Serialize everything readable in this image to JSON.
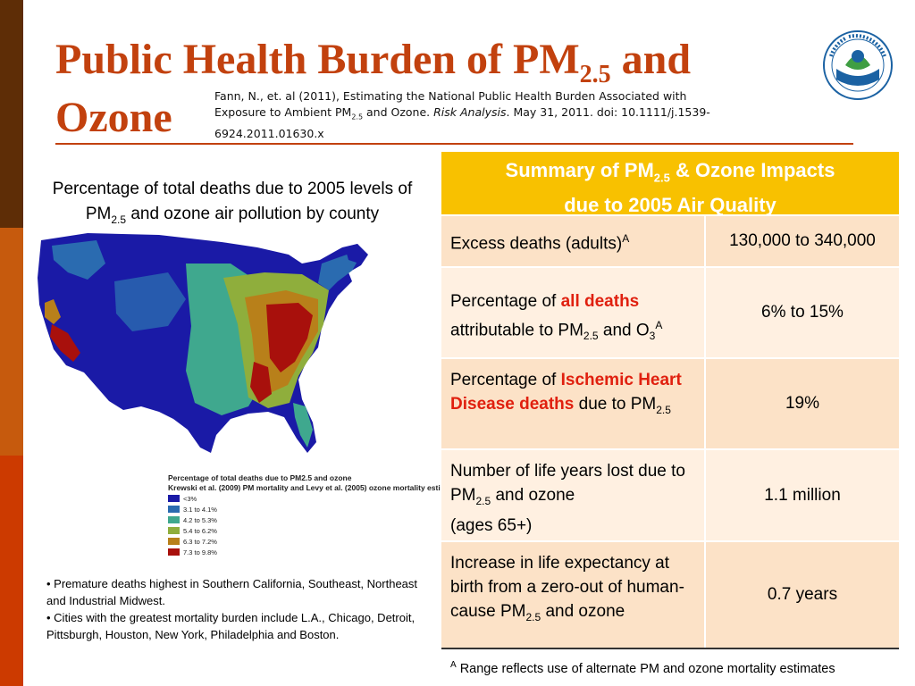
{
  "title": {
    "line1_pre": "Public Health Burden of PM",
    "line1_sub": "2.5",
    "line1_post": " and",
    "line2": "Ozone"
  },
  "citation": {
    "line1": "Fann, N., et. al (2011), Estimating the National Public Health Burden Associated with",
    "line2_pre": "Exposure to Ambient PM",
    "line2_sub": "2.5",
    "line2_mid": " and Ozone. ",
    "line2_journal": "Risk Analysis",
    "line2_post": ". May 31, 2011. doi: 10.1111/j.1539-",
    "line3": "6924.2011.01630.x"
  },
  "map_caption": {
    "line1": "Percentage of total deaths due to 2005 levels of",
    "line2_pre": "PM",
    "line2_sub": "2.5",
    "line2_post": " and ozone air pollution by county"
  },
  "legend": {
    "title": "Percentage of total deaths due to PM2.5 and ozone",
    "subtitle": "Krewski et al. (2009) PM mortality and Levy et al. (2005) ozone mortality esti",
    "items": [
      {
        "label": "<3%",
        "color": "#1a1aa6"
      },
      {
        "label": "3.1 to 4.1%",
        "color": "#2a6bb0"
      },
      {
        "label": "4.2 to 5.3%",
        "color": "#3fa88e"
      },
      {
        "label": "5.4 to 6.2%",
        "color": "#8fae3c"
      },
      {
        "label": "6.3 to 7.2%",
        "color": "#b8801a"
      },
      {
        "label": "7.3 to 9.8%",
        "color": "#a8100c"
      }
    ]
  },
  "bullets": [
    "• Premature deaths highest in Southern California, Southeast, Northeast and Industrial Midwest.",
    "• Cities with the greatest mortality burden include L.A., Chicago, Detroit, Pittsburgh, Houston, New York, Philadelphia and Boston."
  ],
  "table": {
    "header_pre": "Summary of PM",
    "header_sub": "2.5",
    "header_post": " & Ozone Impacts",
    "header_line2": "due to 2005 Air Quality",
    "rows": [
      {
        "label_pre": "Excess deaths (adults)",
        "label_sup": "A",
        "value": "130,000 to 340,000"
      },
      {
        "label_pre": "Percentage of ",
        "label_hl": "all deaths",
        "label_mid": "attributable to PM",
        "label_sub": "2.5",
        "label_post": " and O",
        "label_sub2": "3",
        "label_sup": "A",
        "value": "6% to 15%"
      },
      {
        "label_pre": "Percentage of ",
        "label_hl": "Ischemic Heart Disease deaths",
        "label_mid": " due to PM",
        "label_sub": "2.5",
        "value": "19%"
      },
      {
        "label_pre": "Number of life years lost due to PM",
        "label_sub": "2.5",
        "label_mid": " and ozone",
        "label_post": "(ages 65+)",
        "value": "1.1 million"
      },
      {
        "label_pre": "Increase in life expectancy at birth from a zero-out of human-cause PM",
        "label_sub": "2.5",
        "label_post": " and ozone",
        "value": "0.7 years"
      }
    ]
  },
  "footnote": {
    "sup": "A",
    "text": " Range reflects use of alternate PM and ozone mortality estimates"
  },
  "colors": {
    "accent": "#c2410e",
    "header_yellow": "#f8c100",
    "highlight_red": "#e0200f"
  }
}
